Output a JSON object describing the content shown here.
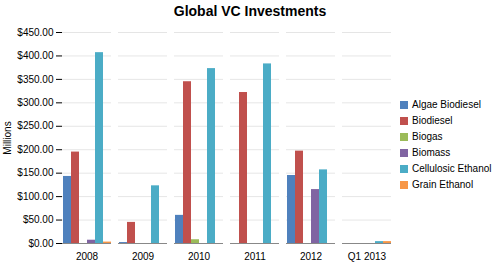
{
  "chart_data": {
    "type": "bar",
    "title": "Global VC Investments",
    "y_label": "Millions",
    "categories": [
      "2008",
      "2009",
      "2010",
      "2011",
      "2012",
      "Q1 2013"
    ],
    "series": [
      {
        "name": "Algae Biodiesel",
        "color": "#4f81bd",
        "values": [
          143,
          2,
          60,
          0,
          145,
          0
        ]
      },
      {
        "name": "Biodiesel",
        "color": "#c0504d",
        "values": [
          195,
          45,
          345,
          322,
          197,
          0
        ]
      },
      {
        "name": "Biogas",
        "color": "#9bbb59",
        "values": [
          0,
          0,
          8,
          0,
          0,
          0
        ]
      },
      {
        "name": "Biomass",
        "color": "#8064a2",
        "values": [
          7,
          0,
          0,
          0,
          115,
          0
        ]
      },
      {
        "name": "Cellulosic Ethanol",
        "color": "#4bacc6",
        "values": [
          407,
          123,
          373,
          383,
          157,
          4
        ]
      },
      {
        "name": "Grain Ethanol",
        "color": "#f79646",
        "values": [
          3,
          0,
          0,
          0,
          0,
          4
        ]
      }
    ],
    "ylim": [
      0,
      450
    ],
    "yticks": [
      {
        "value": 0,
        "label": "$0.00"
      },
      {
        "value": 50,
        "label": "$50.00"
      },
      {
        "value": 100,
        "label": "$100.00"
      },
      {
        "value": 150,
        "label": "$150.00"
      },
      {
        "value": 200,
        "label": "$200.00"
      },
      {
        "value": 250,
        "label": "$250.00"
      },
      {
        "value": 300,
        "label": "$300.00"
      },
      {
        "value": 350,
        "label": "$350.00"
      },
      {
        "value": 400,
        "label": "$400.00"
      },
      {
        "value": 450,
        "label": "$450.00"
      }
    ],
    "grid": true,
    "legend": "right"
  }
}
